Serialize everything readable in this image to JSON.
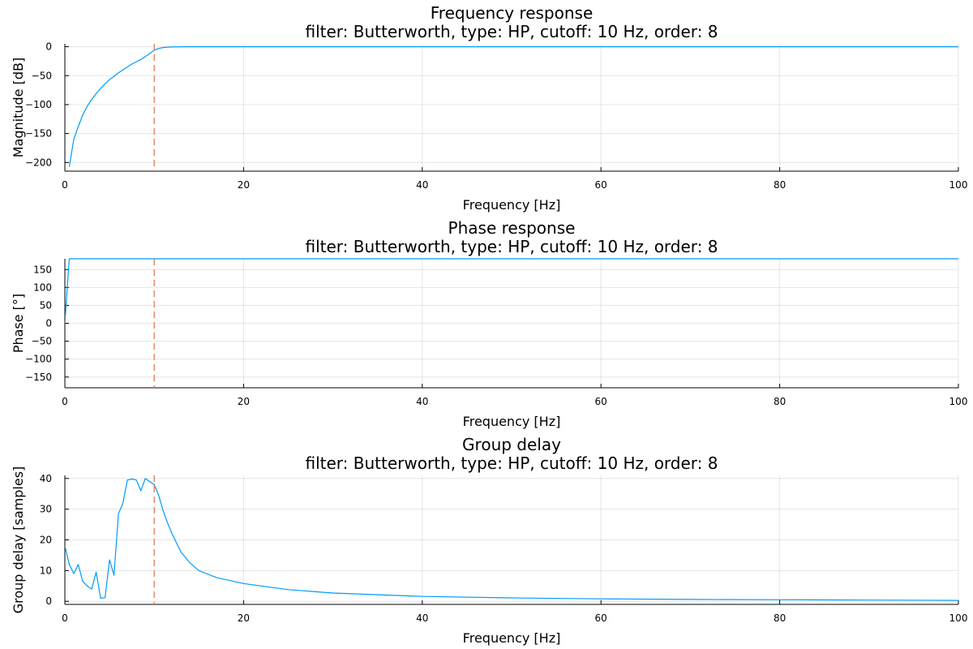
{
  "colors": {
    "series": "#009AFA",
    "cutoff": "#E26F46"
  },
  "chart_data": [
    {
      "type": "line",
      "title_lines": [
        "Frequency response",
        "filter: Butterworth, type: HP, cutoff: 10 Hz, order: 8"
      ],
      "xlabel": "Frequency [Hz]",
      "ylabel": "Magnitude [dB]",
      "xlim": [
        0,
        100
      ],
      "ylim": [
        -215,
        5
      ],
      "xticks": [
        0,
        20,
        40,
        60,
        80,
        100
      ],
      "yticks": [
        -200,
        -150,
        -100,
        -50,
        0
      ],
      "grid": true,
      "cutoff_x": 10,
      "series": [
        {
          "x": [
            0.5,
            1,
            1.5,
            2,
            2.5,
            3,
            3.5,
            4,
            4.5,
            5,
            5.5,
            6,
            6.5,
            7,
            7.5,
            8,
            8.5,
            9,
            9.5,
            10,
            10.5,
            11,
            11.5,
            12,
            13,
            14,
            15,
            20,
            30,
            40,
            50,
            60,
            70,
            80,
            90,
            100
          ],
          "y": [
            -207,
            -160,
            -138,
            -118,
            -103,
            -91,
            -81,
            -72,
            -64,
            -57,
            -51,
            -45,
            -40,
            -35,
            -30,
            -26,
            -22,
            -17,
            -12,
            -6,
            -3,
            -1.5,
            -0.8,
            -0.4,
            -0.1,
            -0.05,
            0,
            0,
            0,
            0,
            0,
            0,
            0,
            0,
            0,
            0
          ]
        }
      ]
    },
    {
      "type": "line",
      "title_lines": [
        "Phase response",
        "filter: Butterworth, type: HP, cutoff: 10 Hz, order: 8"
      ],
      "xlabel": "Frequency [Hz]",
      "ylabel": "Phase [°]",
      "xlim": [
        0,
        100
      ],
      "ylim": [
        -180,
        180
      ],
      "xticks": [
        0,
        20,
        40,
        60,
        80,
        100
      ],
      "yticks": [
        -150,
        -100,
        -50,
        0,
        50,
        100,
        150
      ],
      "grid": true,
      "cutoff_x": 10,
      "series": [
        {
          "x": [
            0,
            0.25,
            0.5,
            100
          ],
          "y": [
            0,
            95,
            180,
            180
          ]
        }
      ]
    },
    {
      "type": "line",
      "title_lines": [
        "Group delay",
        "filter: Butterworth, type: HP, cutoff: 10 Hz, order: 8"
      ],
      "xlabel": "Frequency [Hz]",
      "ylabel": "Group delay [samples]",
      "xlim": [
        0,
        100
      ],
      "ylim": [
        -1,
        41
      ],
      "xticks": [
        0,
        20,
        40,
        60,
        80,
        100
      ],
      "yticks": [
        0,
        10,
        20,
        30,
        40
      ],
      "grid": true,
      "cutoff_x": 10,
      "series": [
        {
          "x": [
            0,
            0.5,
            1,
            1.5,
            2,
            2.5,
            3,
            3.5,
            4,
            4.5,
            5,
            5.5,
            6,
            6.5,
            7,
            7.5,
            8,
            8.5,
            9,
            9.5,
            10,
            10.5,
            11,
            11.5,
            12,
            13,
            14,
            15,
            17,
            20,
            25,
            30,
            40,
            50,
            60,
            70,
            80,
            90,
            100
          ],
          "y": [
            18,
            12,
            9,
            12,
            6.5,
            5,
            4,
            9.5,
            1,
            1.2,
            13.5,
            8.5,
            28.5,
            32,
            39.5,
            39.8,
            39.5,
            36,
            40,
            39,
            38,
            34.5,
            29.5,
            25.5,
            22,
            16,
            12.5,
            10,
            7.7,
            5.8,
            3.8,
            2.7,
            1.6,
            1.1,
            0.8,
            0.6,
            0.5,
            0.4,
            0.3
          ]
        }
      ]
    }
  ]
}
